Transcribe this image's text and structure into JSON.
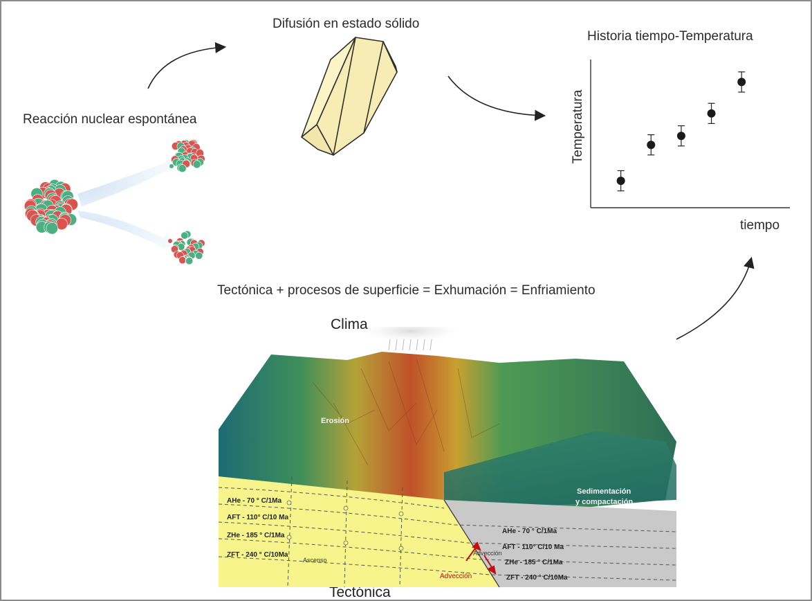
{
  "titles": {
    "diffusion": "Difusión en estado sólido",
    "history": "Historia tiempo-Temperatura",
    "reaction": "Reacción nuclear espontánea",
    "equation": "Tectónica + procesos de superficie = Exhumación = Enfriamiento",
    "climate": "Clima",
    "tectonics": "Tectónica"
  },
  "plot": {
    "ylabel": "Temperatura",
    "xlabel": "tiempo",
    "points": [
      {
        "t": 1,
        "T": 1.2,
        "err": 0.45
      },
      {
        "t": 2,
        "T": 2.8,
        "err": 0.45
      },
      {
        "t": 3,
        "T": 3.2,
        "err": 0.45
      },
      {
        "t": 4,
        "T": 4.2,
        "err": 0.45
      },
      {
        "t": 5,
        "T": 5.6,
        "err": 0.45
      }
    ]
  },
  "block": {
    "erosion": "Erosión",
    "sedimentation_1": "Sedimentación",
    "sedimentation_2": "y compactación",
    "left_zones": [
      "AHe - 70 ° C/1Ma",
      "AFT - 110° C/10 Ma",
      "ZHe - 185 ° C/1Ma",
      "ZFT - 240 ° C/10Ma"
    ],
    "right_zones": [
      "AHe - 70 ° C/1Ma",
      "AFT - 110° C/10 Ma",
      "ZHe - 185 ° C/1Ma",
      "ZFT - 240 ° C/10Ma"
    ],
    "ascenso": "Ascenso",
    "adveccion_1": "Advección",
    "adveccion_2": "Advección"
  },
  "colors": {
    "nucleus_red": "#d9534f",
    "nucleus_green": "#4caf82",
    "crystal": "#f8f0b8",
    "crust_yellow": "#f6f48a",
    "basin_gray": "#c8c8c8",
    "arrow": "#222222"
  }
}
